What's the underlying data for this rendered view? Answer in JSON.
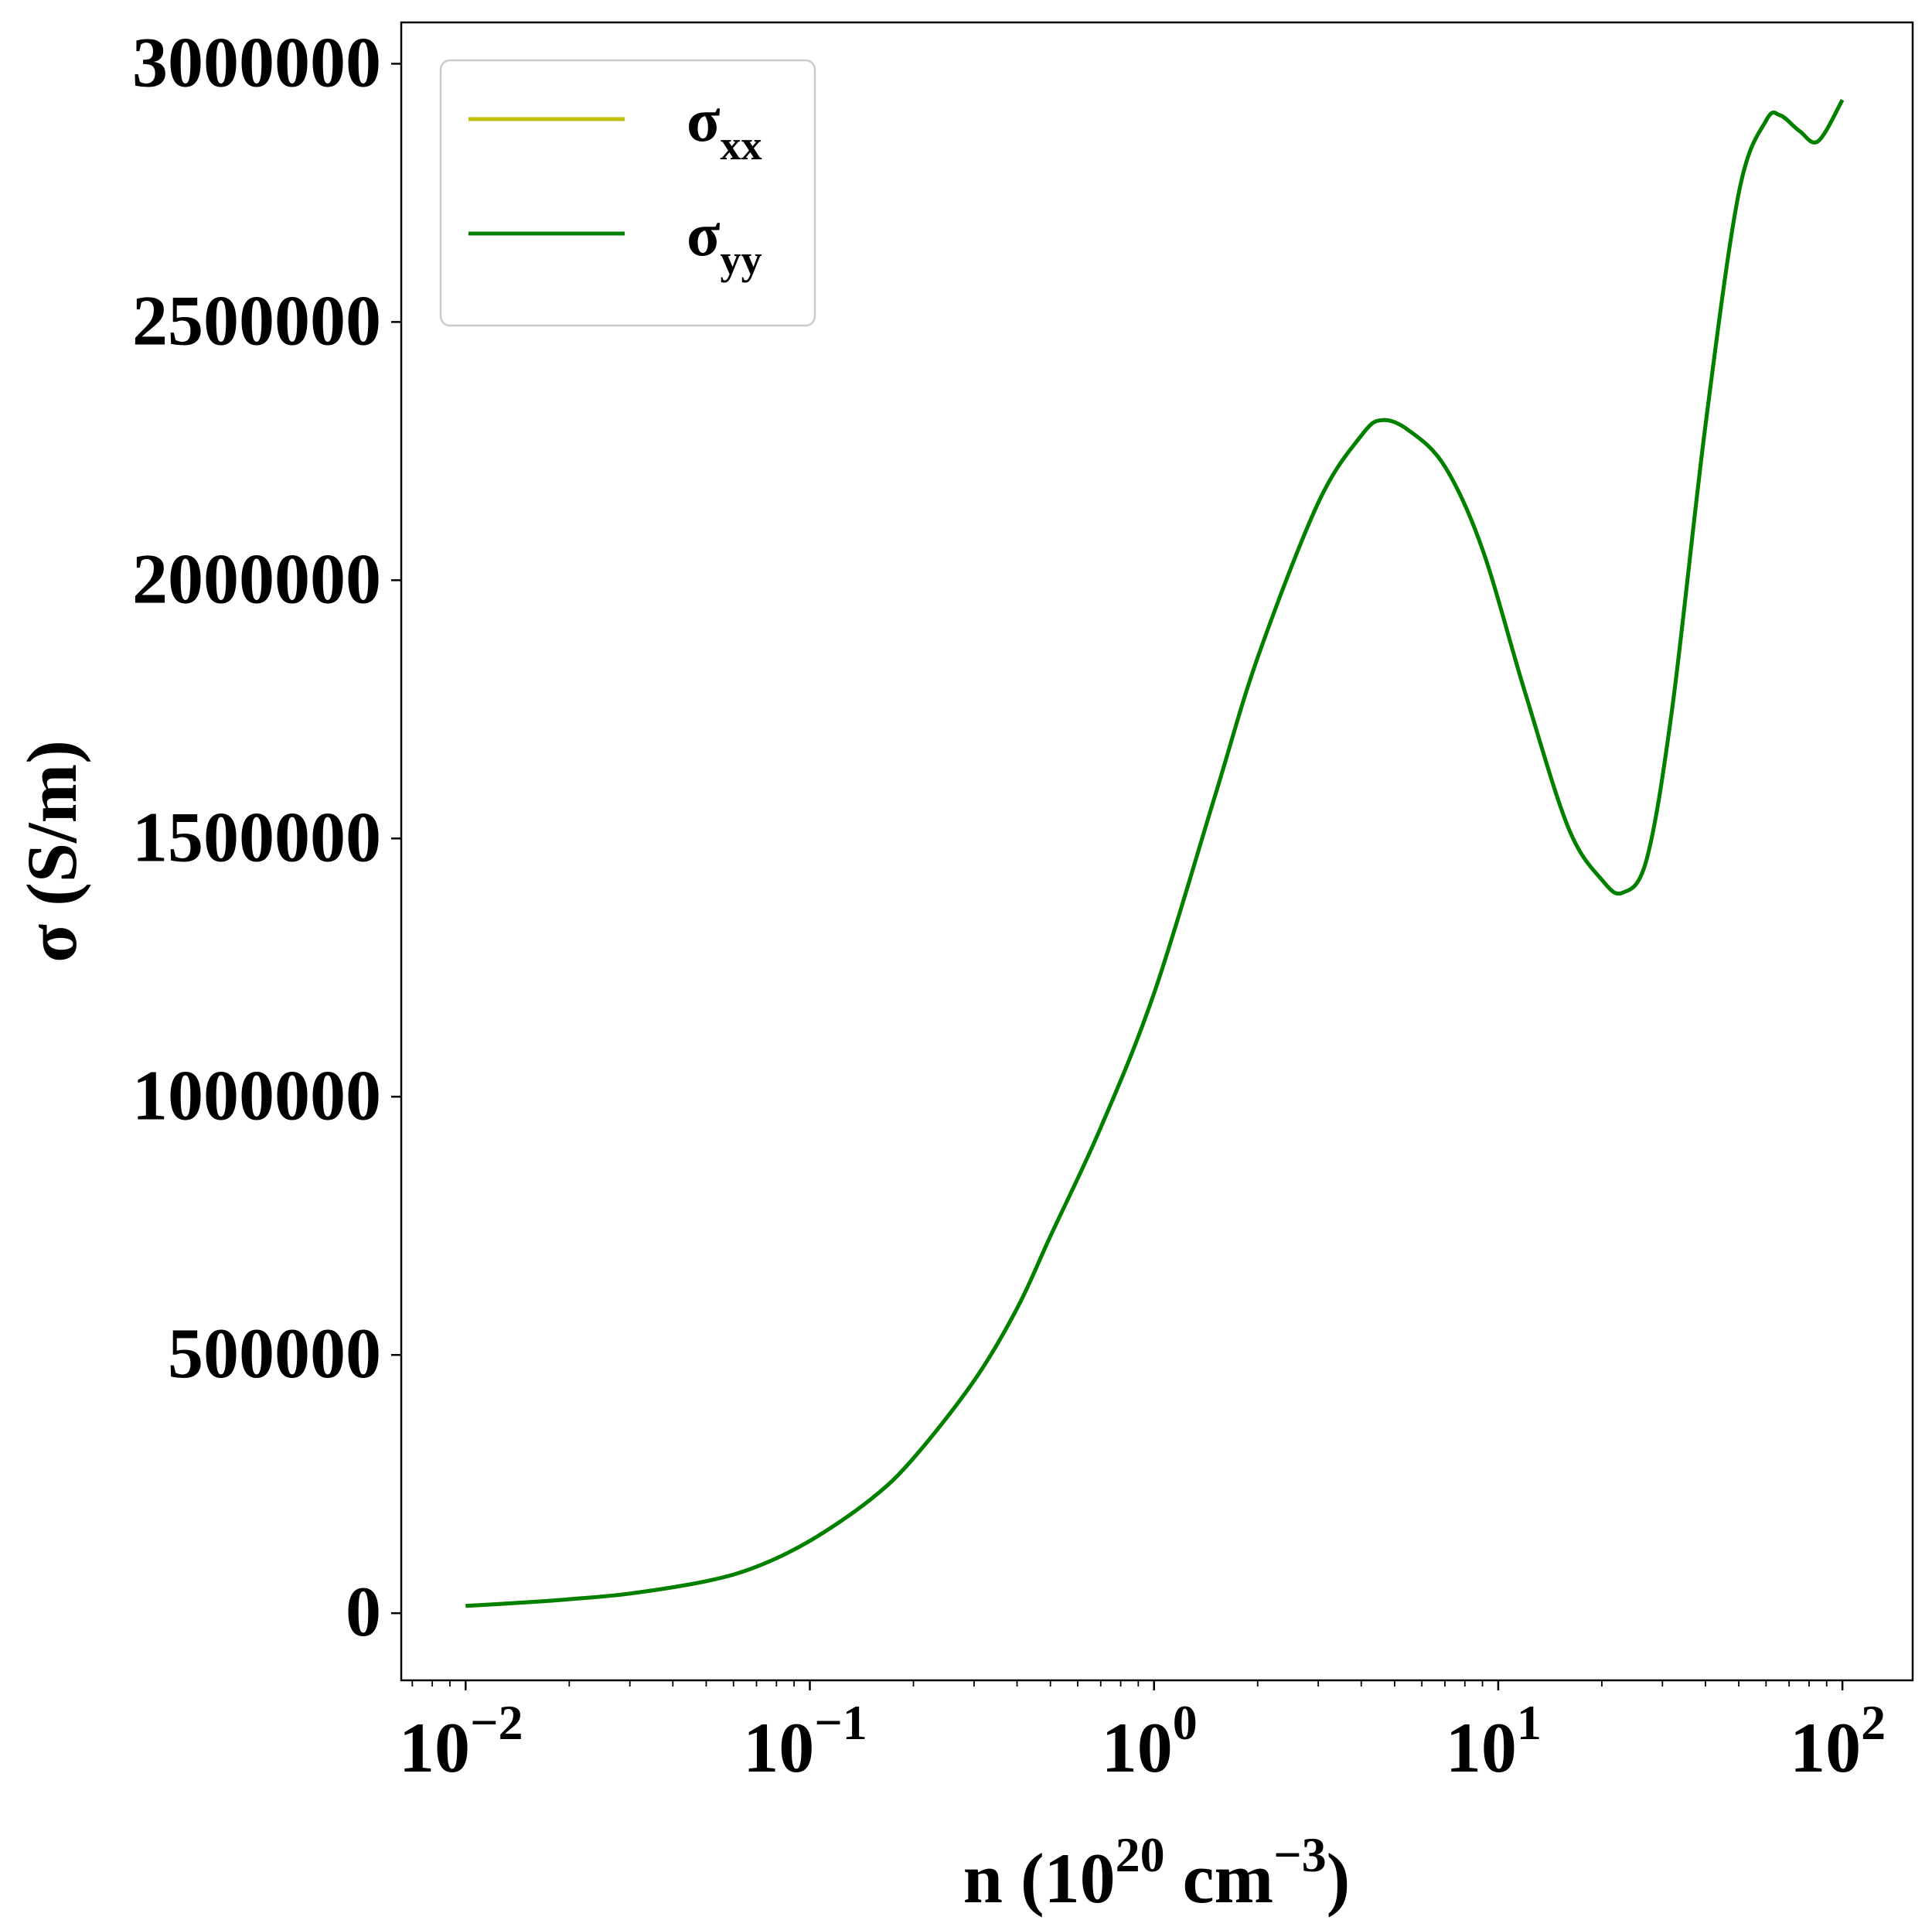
{
  "chart_data": {
    "type": "line",
    "xscale": "log",
    "xlim": [
      0.0065,
      160
    ],
    "ylim": [
      -130000,
      3080000
    ],
    "grid": false,
    "legend_position": "top-left",
    "xlabel_parts": {
      "main": "n (10",
      "exp1": "20",
      "mid": " cm",
      "exp2": "−3",
      "end": ")"
    },
    "ylabel": "σ (S/m)",
    "yticks": [
      {
        "value": 0,
        "label": "0"
      },
      {
        "value": 500000,
        "label": "500000"
      },
      {
        "value": 1000000,
        "label": "1000000"
      },
      {
        "value": 1500000,
        "label": "1500000"
      },
      {
        "value": 2000000,
        "label": "2000000"
      },
      {
        "value": 2500000,
        "label": "2500000"
      },
      {
        "value": 3000000,
        "label": "3000000"
      }
    ],
    "xticks": [
      {
        "value": 0.01,
        "base": "10",
        "exp": "−2"
      },
      {
        "value": 0.1,
        "base": "10",
        "exp": "−1"
      },
      {
        "value": 1,
        "base": "10",
        "exp": "0"
      },
      {
        "value": 10,
        "base": "10",
        "exp": "1"
      },
      {
        "value": 100,
        "base": "10",
        "exp": "2"
      }
    ],
    "series": [
      {
        "name_base": "σ",
        "name_sub": "xx",
        "color": "#bfbf00",
        "x": [
          0.01,
          0.015,
          0.02,
          0.03,
          0.05,
          0.07,
          0.1,
          0.15,
          0.2,
          0.3,
          0.4,
          0.5,
          0.7,
          1,
          1.5,
          2,
          3,
          4,
          4.6,
          5.5,
          7,
          9,
          12,
          16,
          20,
          23,
          27,
          32,
          40,
          50,
          60,
          66,
          75,
          85,
          100
        ],
        "y": [
          14000,
          21000,
          27000,
          38000,
          62000,
          90000,
          140000,
          220000,
          300000,
          450000,
          590000,
          730000,
          940000,
          1200000,
          1580000,
          1850000,
          2150000,
          2280000,
          2310000,
          2290000,
          2220000,
          2060000,
          1780000,
          1520000,
          1420000,
          1395000,
          1460000,
          1750000,
          2300000,
          2750000,
          2890000,
          2900000,
          2870000,
          2850000,
          2930000
        ]
      },
      {
        "name_base": "σ",
        "name_sub": "yy",
        "color": "#008000",
        "x": [
          0.01,
          0.015,
          0.02,
          0.03,
          0.05,
          0.07,
          0.1,
          0.15,
          0.2,
          0.3,
          0.4,
          0.5,
          0.7,
          1,
          1.5,
          2,
          3,
          4,
          4.6,
          5.5,
          7,
          9,
          12,
          16,
          20,
          23,
          27,
          32,
          40,
          50,
          60,
          66,
          75,
          85,
          100
        ],
        "y": [
          14000,
          21000,
          27000,
          38000,
          62000,
          90000,
          140000,
          220000,
          300000,
          450000,
          590000,
          730000,
          940000,
          1200000,
          1580000,
          1850000,
          2150000,
          2280000,
          2310000,
          2290000,
          2220000,
          2060000,
          1780000,
          1520000,
          1420000,
          1395000,
          1460000,
          1750000,
          2300000,
          2750000,
          2890000,
          2900000,
          2870000,
          2850000,
          2930000
        ]
      }
    ]
  }
}
